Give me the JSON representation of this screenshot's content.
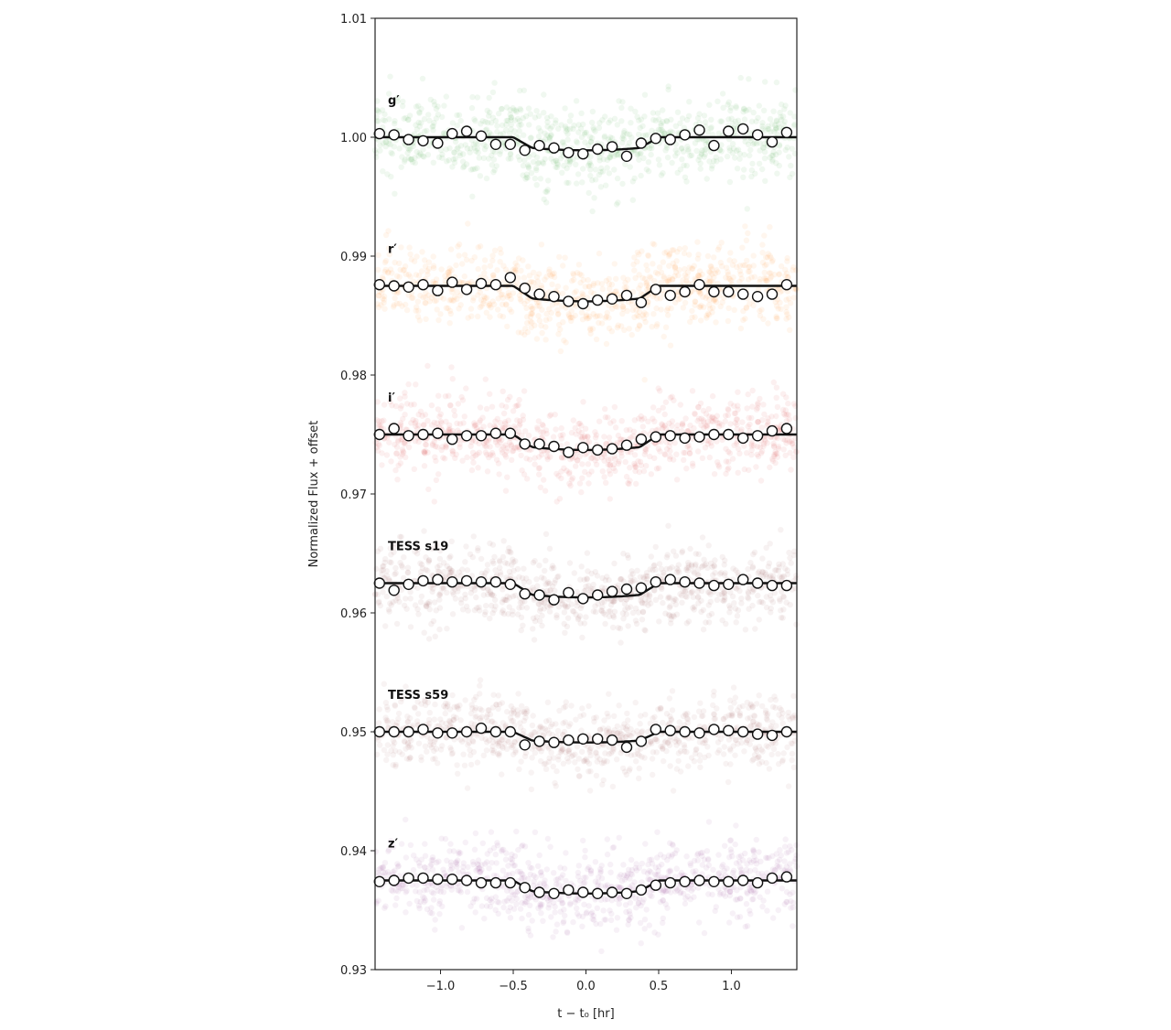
{
  "chart_data": {
    "type": "scatter",
    "ylabel": "Normalized Flux + offset",
    "xlabel": "t − t₀ [hr]",
    "xlim": [
      -1.45,
      1.45
    ],
    "ylim": [
      0.93,
      1.01
    ],
    "xticks": [
      -1.0,
      -0.5,
      0.0,
      0.5,
      1.0
    ],
    "xtick_labels": [
      "−1.0",
      "−0.5",
      "0.0",
      "0.5",
      "1.0"
    ],
    "yticks": [
      0.93,
      0.94,
      0.95,
      0.96,
      0.97,
      0.98,
      0.99,
      1.0,
      1.01
    ],
    "ytick_labels": [
      "0.93",
      "0.94",
      "0.95",
      "0.96",
      "0.97",
      "0.98",
      "0.99",
      "1.00",
      "1.01"
    ],
    "transit": {
      "ingress_start": -0.5,
      "ingress_end": -0.37,
      "egress_start": 0.37,
      "egress_end": 0.5
    },
    "series": [
      {
        "name": "g′",
        "offset": 1.0,
        "depth": 0.0011,
        "color": "#2ca02c",
        "scatter_sd": 0.0018,
        "binned_x": [
          -1.42,
          -1.32,
          -1.22,
          -1.12,
          -1.02,
          -0.92,
          -0.82,
          -0.72,
          -0.62,
          -0.52,
          -0.42,
          -0.32,
          -0.22,
          -0.12,
          -0.02,
          0.08,
          0.18,
          0.28,
          0.38,
          0.48,
          0.58,
          0.68,
          0.78,
          0.88,
          0.98,
          1.08,
          1.18,
          1.28,
          1.38
        ],
        "binned_y": [
          1.0003,
          1.0002,
          0.9998,
          0.9997,
          0.9995,
          1.0003,
          1.0005,
          1.0001,
          0.9994,
          0.9994,
          0.9989,
          0.9993,
          0.9991,
          0.9987,
          0.9986,
          0.999,
          0.9992,
          0.9984,
          0.9995,
          0.9999,
          0.9998,
          1.0002,
          1.0006,
          0.9993,
          1.0005,
          1.0007,
          1.0002,
          0.9996,
          1.0004
        ]
      },
      {
        "name": "r′",
        "offset": 0.9875,
        "depth": 0.0013,
        "color": "#ff7f0e",
        "scatter_sd": 0.0016,
        "binned_x": [
          -1.42,
          -1.32,
          -1.22,
          -1.12,
          -1.02,
          -0.92,
          -0.82,
          -0.72,
          -0.62,
          -0.52,
          -0.42,
          -0.32,
          -0.22,
          -0.12,
          -0.02,
          0.08,
          0.18,
          0.28,
          0.38,
          0.48,
          0.58,
          0.68,
          0.78,
          0.88,
          0.98,
          1.08,
          1.18,
          1.28,
          1.38
        ],
        "binned_y": [
          0.9876,
          0.9875,
          0.9874,
          0.9876,
          0.9871,
          0.9878,
          0.9872,
          0.9877,
          0.9876,
          0.9882,
          0.9873,
          0.9868,
          0.9866,
          0.9862,
          0.986,
          0.9863,
          0.9864,
          0.9867,
          0.9861,
          0.9872,
          0.9867,
          0.987,
          0.9876,
          0.987,
          0.987,
          0.9868,
          0.9866,
          0.9868,
          0.9876
        ]
      },
      {
        "name": "i′",
        "offset": 0.975,
        "depth": 0.0013,
        "color": "#d62728",
        "scatter_sd": 0.0016,
        "binned_x": [
          -1.42,
          -1.32,
          -1.22,
          -1.12,
          -1.02,
          -0.92,
          -0.82,
          -0.72,
          -0.62,
          -0.52,
          -0.42,
          -0.32,
          -0.22,
          -0.12,
          -0.02,
          0.08,
          0.18,
          0.28,
          0.38,
          0.48,
          0.58,
          0.68,
          0.78,
          0.88,
          0.98,
          1.08,
          1.18,
          1.28,
          1.38
        ],
        "binned_y": [
          0.975,
          0.9755,
          0.9749,
          0.975,
          0.9751,
          0.9746,
          0.9749,
          0.9749,
          0.9751,
          0.9751,
          0.9742,
          0.9742,
          0.974,
          0.9735,
          0.9739,
          0.9737,
          0.9738,
          0.9741,
          0.9746,
          0.9748,
          0.9749,
          0.9747,
          0.9748,
          0.975,
          0.975,
          0.9747,
          0.9749,
          0.9753,
          0.9755
        ]
      },
      {
        "name": "TESS s19",
        "offset": 0.9625,
        "depth": 0.0012,
        "color": "#8c4a4a",
        "scatter_sd": 0.0016,
        "binned_x": [
          -1.42,
          -1.32,
          -1.22,
          -1.12,
          -1.02,
          -0.92,
          -0.82,
          -0.72,
          -0.62,
          -0.52,
          -0.42,
          -0.32,
          -0.22,
          -0.12,
          -0.02,
          0.08,
          0.18,
          0.28,
          0.38,
          0.48,
          0.58,
          0.68,
          0.78,
          0.88,
          0.98,
          1.08,
          1.18,
          1.28,
          1.38
        ],
        "binned_y": [
          0.9625,
          0.9619,
          0.9624,
          0.9627,
          0.9628,
          0.9626,
          0.9627,
          0.9626,
          0.9626,
          0.9624,
          0.9616,
          0.9615,
          0.9611,
          0.9617,
          0.9612,
          0.9615,
          0.9618,
          0.962,
          0.9621,
          0.9626,
          0.9628,
          0.9626,
          0.9625,
          0.9623,
          0.9624,
          0.9628,
          0.9625,
          0.9623,
          0.9623
        ]
      },
      {
        "name": "TESS s59",
        "offset": 0.95,
        "depth": 0.0009,
        "color": "#a05050",
        "scatter_sd": 0.0015,
        "binned_x": [
          -1.42,
          -1.32,
          -1.22,
          -1.12,
          -1.02,
          -0.92,
          -0.82,
          -0.72,
          -0.62,
          -0.52,
          -0.42,
          -0.32,
          -0.22,
          -0.12,
          -0.02,
          0.08,
          0.18,
          0.28,
          0.38,
          0.48,
          0.58,
          0.68,
          0.78,
          0.88,
          0.98,
          1.08,
          1.18,
          1.28,
          1.38
        ],
        "binned_y": [
          0.95,
          0.95,
          0.95,
          0.9502,
          0.9499,
          0.9499,
          0.95,
          0.9503,
          0.95,
          0.95,
          0.9489,
          0.9492,
          0.9491,
          0.9493,
          0.9494,
          0.9494,
          0.9493,
          0.9487,
          0.9492,
          0.9502,
          0.9501,
          0.95,
          0.9499,
          0.9502,
          0.9501,
          0.95,
          0.9498,
          0.9497,
          0.95
        ]
      },
      {
        "name": "z′",
        "offset": 0.9375,
        "depth": 0.0011,
        "color": "#8b3a8b",
        "scatter_sd": 0.0016,
        "binned_x": [
          -1.42,
          -1.32,
          -1.22,
          -1.12,
          -1.02,
          -0.92,
          -0.82,
          -0.72,
          -0.62,
          -0.52,
          -0.42,
          -0.32,
          -0.22,
          -0.12,
          -0.02,
          0.08,
          0.18,
          0.28,
          0.38,
          0.48,
          0.58,
          0.68,
          0.78,
          0.88,
          0.98,
          1.08,
          1.18,
          1.28,
          1.38
        ],
        "binned_y": [
          0.9374,
          0.9375,
          0.9377,
          0.9377,
          0.9376,
          0.9376,
          0.9375,
          0.9373,
          0.9373,
          0.9373,
          0.9369,
          0.9365,
          0.9364,
          0.9367,
          0.9365,
          0.9364,
          0.9365,
          0.9364,
          0.9367,
          0.9371,
          0.9373,
          0.9374,
          0.9375,
          0.9374,
          0.9374,
          0.9375,
          0.9373,
          0.9377,
          0.9378
        ]
      }
    ]
  }
}
